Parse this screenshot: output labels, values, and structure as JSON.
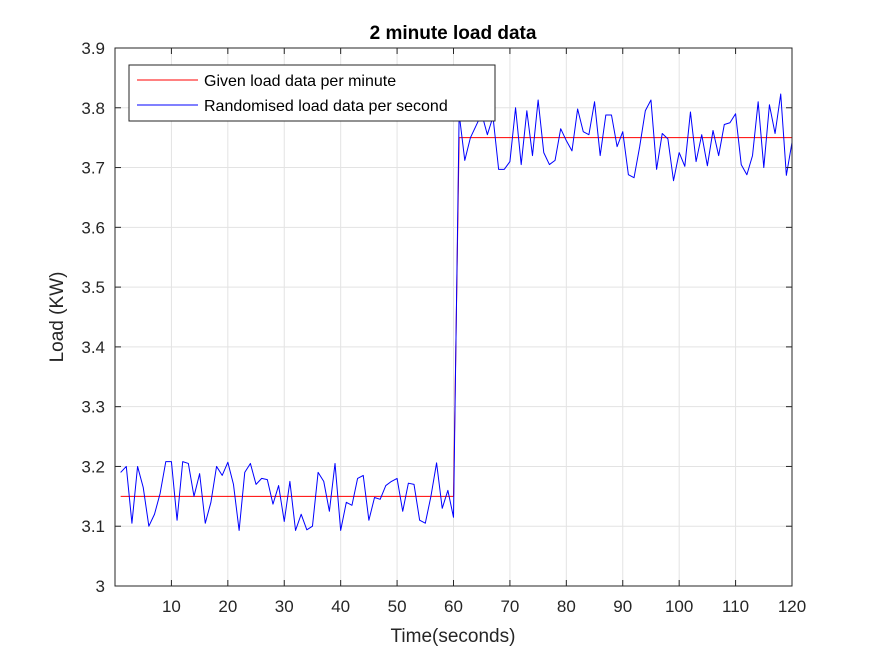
{
  "chart_data": {
    "type": "line",
    "title": "2 minute load data",
    "xlabel": "Time(seconds)",
    "ylabel": "Load (KW)",
    "xlim": [
      0,
      120
    ],
    "ylim": [
      3,
      3.9
    ],
    "xticks": [
      10,
      20,
      30,
      40,
      50,
      60,
      70,
      80,
      90,
      100,
      110,
      120
    ],
    "yticks": [
      3,
      3.1,
      3.2,
      3.3,
      3.4,
      3.5,
      3.6,
      3.7,
      3.8,
      3.9
    ],
    "grid": true,
    "legend_position": "top-left",
    "series": [
      {
        "name": "Given load data per minute",
        "color": "#ff0000",
        "x": [
          1,
          60,
          61,
          120
        ],
        "y": [
          3.15,
          3.15,
          3.75,
          3.75
        ]
      },
      {
        "name": "Randomised load data per second",
        "color": "#0000ff",
        "x": [
          1,
          2,
          3,
          4,
          5,
          6,
          7,
          8,
          9,
          10,
          11,
          12,
          13,
          14,
          15,
          16,
          17,
          18,
          19,
          20,
          21,
          22,
          23,
          24,
          25,
          26,
          27,
          28,
          29,
          30,
          31,
          32,
          33,
          34,
          35,
          36,
          37,
          38,
          39,
          40,
          41,
          42,
          43,
          44,
          45,
          46,
          47,
          48,
          49,
          50,
          51,
          52,
          53,
          54,
          55,
          56,
          57,
          58,
          59,
          60,
          61,
          62,
          63,
          64,
          65,
          66,
          67,
          68,
          69,
          70,
          71,
          72,
          73,
          74,
          75,
          76,
          77,
          78,
          79,
          80,
          81,
          82,
          83,
          84,
          85,
          86,
          87,
          88,
          89,
          90,
          91,
          92,
          93,
          94,
          95,
          96,
          97,
          98,
          99,
          100,
          101,
          102,
          103,
          104,
          105,
          106,
          107,
          108,
          109,
          110,
          111,
          112,
          113,
          114,
          115,
          116,
          117,
          118,
          119,
          120
        ],
        "y": [
          3.19,
          3.2,
          3.105,
          3.2,
          3.165,
          3.1,
          3.12,
          3.155,
          3.208,
          3.208,
          3.11,
          3.208,
          3.205,
          3.15,
          3.188,
          3.105,
          3.14,
          3.2,
          3.185,
          3.207,
          3.17,
          3.093,
          3.19,
          3.205,
          3.17,
          3.18,
          3.178,
          3.137,
          3.168,
          3.108,
          3.175,
          3.093,
          3.12,
          3.094,
          3.1,
          3.19,
          3.175,
          3.125,
          3.205,
          3.093,
          3.14,
          3.135,
          3.18,
          3.185,
          3.11,
          3.148,
          3.145,
          3.168,
          3.175,
          3.18,
          3.125,
          3.172,
          3.17,
          3.11,
          3.105,
          3.15,
          3.206,
          3.13,
          3.16,
          3.115,
          3.79,
          3.712,
          3.75,
          3.77,
          3.79,
          3.755,
          3.785,
          3.697,
          3.697,
          3.71,
          3.8,
          3.705,
          3.795,
          3.72,
          3.813,
          3.725,
          3.705,
          3.712,
          3.765,
          3.745,
          3.728,
          3.798,
          3.76,
          3.755,
          3.81,
          3.72,
          3.788,
          3.788,
          3.735,
          3.76,
          3.688,
          3.683,
          3.735,
          3.795,
          3.813,
          3.697,
          3.757,
          3.748,
          3.678,
          3.725,
          3.702,
          3.793,
          3.71,
          3.755,
          3.703,
          3.762,
          3.72,
          3.772,
          3.775,
          3.79,
          3.705,
          3.688,
          3.72,
          3.81,
          3.7,
          3.805,
          3.757,
          3.823,
          3.687,
          3.742
        ]
      }
    ]
  }
}
